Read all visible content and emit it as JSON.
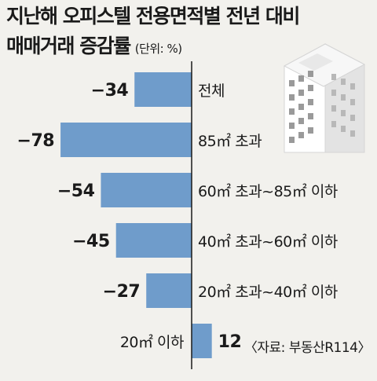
{
  "title_line1": "지난해 오피스텔 전용면적별 전년 대비",
  "title_line2": "매매거래 증감률",
  "unit": "(단위: %)",
  "source": "〈자료: 부동산R114〉",
  "colors": {
    "bar": "#6f9ccb",
    "axis": "#1a1a1a",
    "background": "#f2f1ed"
  },
  "illustration": "office-building-icon",
  "chart_data": {
    "type": "bar",
    "orientation": "horizontal",
    "categories": [
      "전체",
      "85㎡ 초과",
      "60㎡ 초과~85㎡ 이하",
      "40㎡ 초과~60㎡ 이하",
      "20㎡ 초과~40㎡ 이하",
      "20㎡ 이하"
    ],
    "values": [
      -34,
      -78,
      -54,
      -45,
      -27,
      12
    ],
    "value_labels": [
      "−34",
      "−78",
      "−54",
      "−45",
      "−27",
      "12"
    ],
    "title": "지난해 오피스텔 전용면적별 전년 대비 매매거래 증감률",
    "xlabel": "",
    "ylabel": "",
    "xlim": [
      -78,
      12
    ],
    "grid": false,
    "legend": "none"
  }
}
